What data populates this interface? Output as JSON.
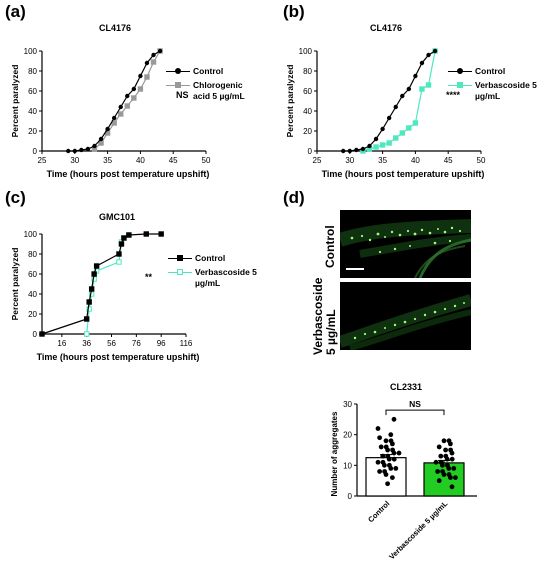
{
  "panels": {
    "a": {
      "label": "(a)",
      "title": "CL4176",
      "significance": "NS"
    },
    "b": {
      "label": "(b)",
      "title": "CL4176",
      "significance": "****"
    },
    "c": {
      "label": "(c)",
      "title": "GMC101",
      "significance": "**"
    },
    "d": {
      "label": "(d)",
      "image_labels": [
        "Control",
        "Verbascoside 5 µg/mL"
      ],
      "chart_title": "CL2331",
      "significance": "NS"
    }
  },
  "colors": {
    "control": "#000000",
    "chlorogenic": "#999999",
    "verbascoside": "#4ee8c0",
    "bar_green": "#22cc22"
  },
  "chart_data": [
    {
      "id": "a",
      "type": "line",
      "title": "CL4176",
      "xlabel": "Time (hours post temperature upshift)",
      "ylabel": "Percent paralyzed",
      "xlim": [
        25,
        50
      ],
      "ylim": [
        0,
        100
      ],
      "xticks": [
        "25",
        "30",
        "35",
        "40",
        "45",
        "50"
      ],
      "yticks": [
        "0",
        "20",
        "40",
        "60",
        "80",
        "100"
      ],
      "series": [
        {
          "name": "Control",
          "color": "#000000",
          "marker": "circle",
          "x": [
            29,
            30,
            31,
            32,
            33,
            34,
            35,
            36,
            37,
            38,
            39,
            40,
            41,
            42,
            43
          ],
          "y": [
            0,
            0,
            1,
            2,
            5,
            12,
            22,
            33,
            44,
            55,
            62,
            75,
            88,
            96,
            100
          ]
        },
        {
          "name": "Chlorogenic acid 5 µg/mL",
          "color": "#999999",
          "marker": "square",
          "x": [
            33,
            34,
            35,
            36,
            37,
            38,
            39,
            40,
            41,
            42,
            43
          ],
          "y": [
            2,
            8,
            18,
            28,
            37,
            45,
            53,
            62,
            74,
            89,
            100
          ]
        }
      ]
    },
    {
      "id": "b",
      "type": "line",
      "title": "CL4176",
      "xlabel": "Time (hours post temperature upshift)",
      "ylabel": "Percent paralyzed",
      "xlim": [
        25,
        50
      ],
      "ylim": [
        0,
        100
      ],
      "xticks": [
        "25",
        "30",
        "35",
        "40",
        "45",
        "50"
      ],
      "yticks": [
        "0",
        "20",
        "40",
        "60",
        "80",
        "100"
      ],
      "series": [
        {
          "name": "Control",
          "color": "#000000",
          "marker": "circle",
          "x": [
            29,
            30,
            31,
            32,
            33,
            34,
            35,
            36,
            37,
            38,
            39,
            40,
            41,
            42,
            43
          ],
          "y": [
            0,
            0,
            1,
            2,
            5,
            12,
            22,
            33,
            44,
            55,
            62,
            75,
            88,
            96,
            100
          ]
        },
        {
          "name": "Verbascoside 5 µg/mL",
          "color": "#4ee8c0",
          "marker": "square",
          "x": [
            32,
            33,
            34,
            35,
            36,
            37,
            38,
            39,
            40,
            41,
            42,
            43
          ],
          "y": [
            0,
            2,
            4,
            6,
            8,
            13,
            18,
            23,
            28,
            62,
            66,
            100
          ]
        }
      ]
    },
    {
      "id": "c",
      "type": "line",
      "title": "GMC101",
      "xlabel": "Time (hours post temperature upshift)",
      "ylabel": "Percent paralyzed",
      "xlim": [
        0,
        116
      ],
      "ylim": [
        0,
        100
      ],
      "xticks": [
        "16",
        "36",
        "56",
        "76",
        "96",
        "116"
      ],
      "yticks": [
        "0",
        "20",
        "40",
        "60",
        "80",
        "100"
      ],
      "series": [
        {
          "name": "Control",
          "color": "#000000",
          "marker": "square",
          "x": [
            0,
            36,
            38,
            40,
            42,
            44,
            62,
            64,
            66,
            70,
            84,
            96
          ],
          "y": [
            0,
            15,
            32,
            45,
            60,
            68,
            80,
            90,
            96,
            99,
            100,
            100
          ]
        },
        {
          "name": "Verbascoside 5 µg/mL",
          "color": "#4ee8c0",
          "marker": "square",
          "x": [
            36,
            38,
            40,
            42,
            44,
            62,
            64,
            66,
            70
          ],
          "y": [
            0,
            25,
            40,
            55,
            63,
            72,
            92,
            96,
            99
          ]
        }
      ]
    },
    {
      "id": "d",
      "type": "bar",
      "title": "CL2331",
      "ylabel": "Number of aggregates",
      "ylim": [
        0,
        30
      ],
      "yticks": [
        "0",
        "10",
        "20",
        "30"
      ],
      "categories": [
        "Control",
        "Verbascoside 5 µg/mL"
      ],
      "values": [
        12.5,
        10.8
      ],
      "errors": [
        1.0,
        0.8
      ],
      "bar_colors": [
        "#ffffff",
        "#22cc22"
      ],
      "points": [
        [
          4,
          6,
          7,
          8,
          8,
          9,
          9,
          10,
          10,
          11,
          11,
          12,
          12,
          13,
          13,
          14,
          14,
          15,
          15,
          16,
          16,
          17,
          18,
          18,
          19,
          20,
          22,
          25
        ],
        [
          3,
          5,
          6,
          6,
          7,
          7,
          8,
          8,
          9,
          9,
          10,
          10,
          11,
          11,
          12,
          12,
          13,
          13,
          14,
          15,
          15,
          16,
          17,
          18,
          18
        ]
      ]
    }
  ]
}
